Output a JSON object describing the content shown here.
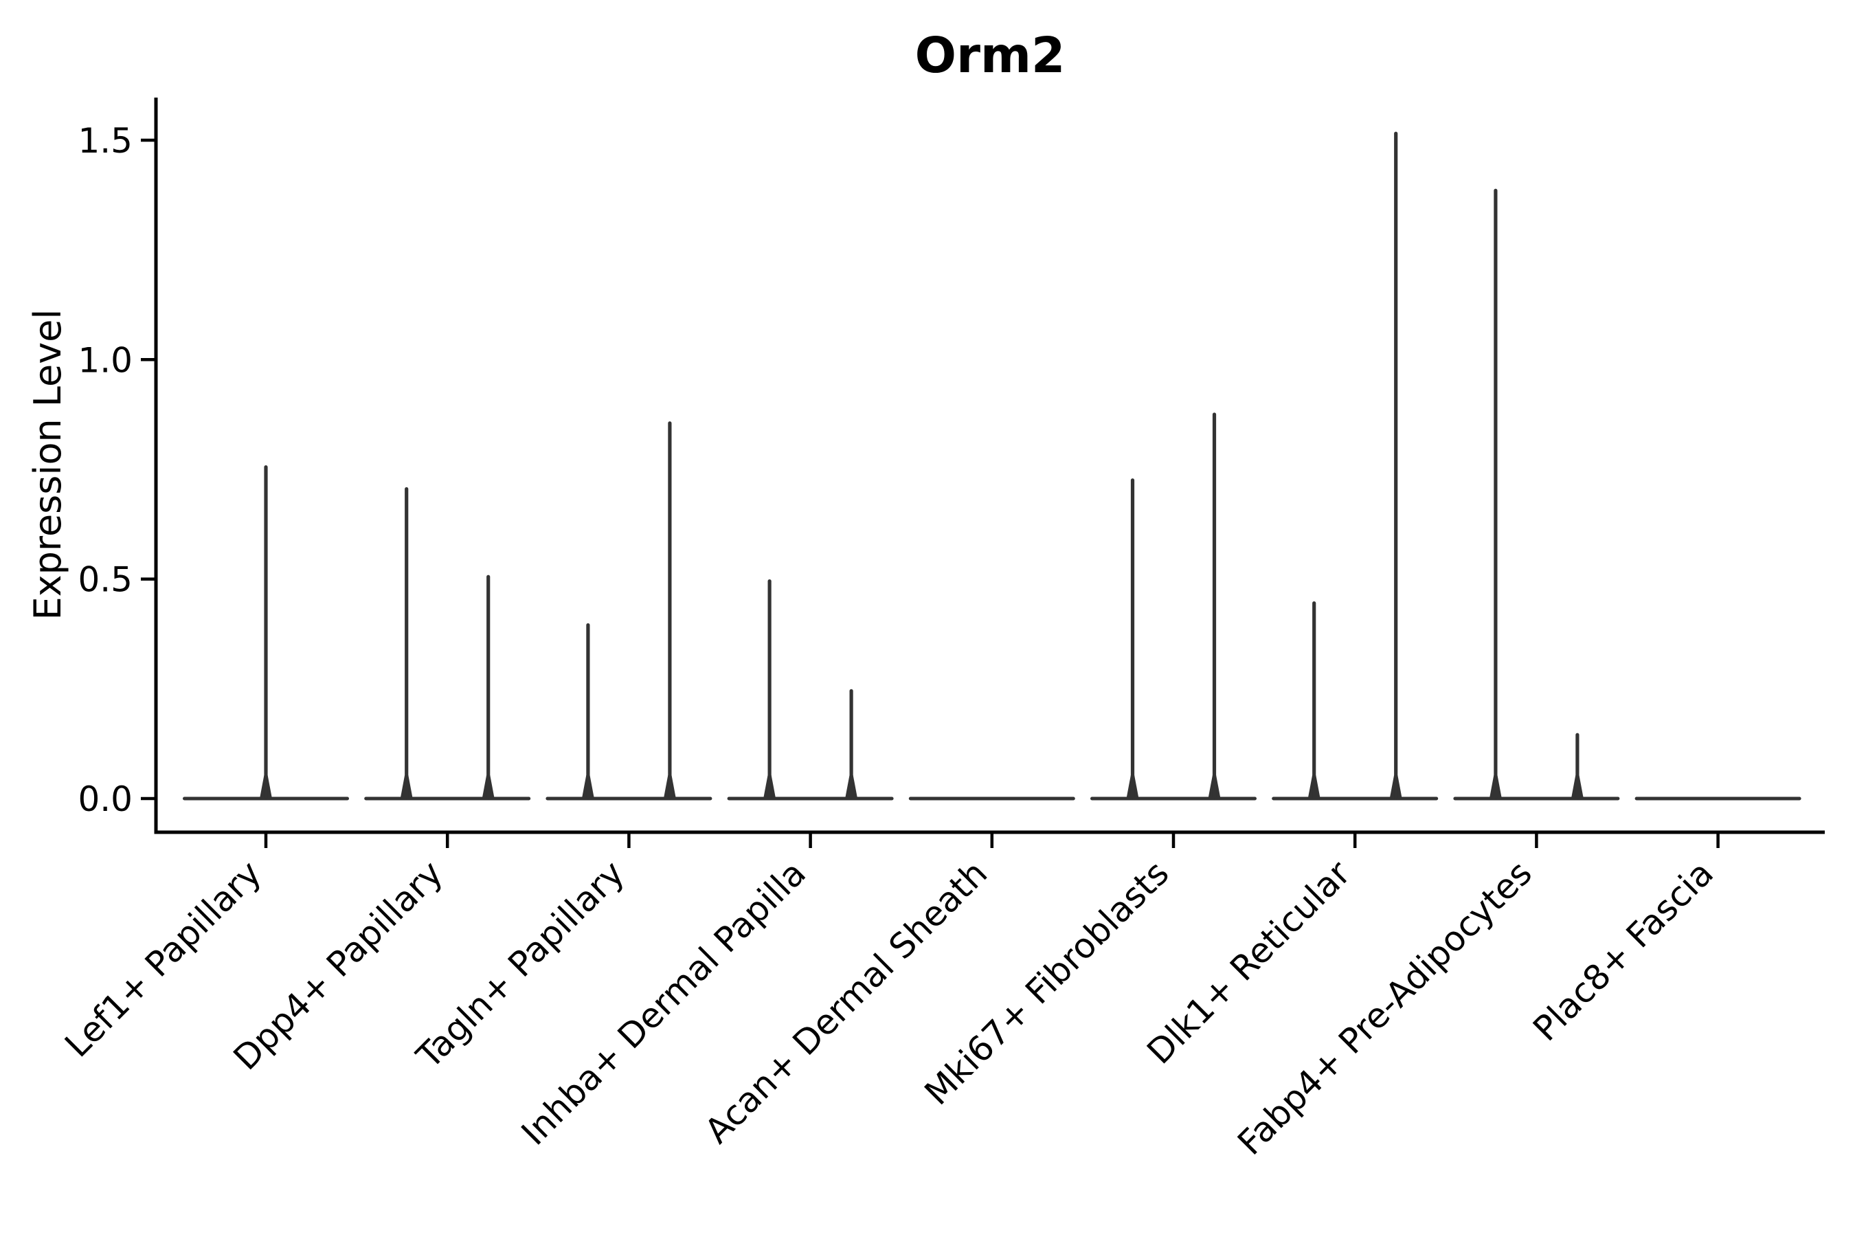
{
  "chart_data": {
    "type": "violin",
    "title": "Orm2",
    "ylabel": "Expression Level",
    "xlabel": "",
    "grid": false,
    "legend": "none",
    "background_color": "#ffffff",
    "axis_color": "#000000",
    "violin_color": "#333333",
    "ylim": [
      -0.08,
      1.6
    ],
    "ytick_values": [
      0.0,
      0.5,
      1.0,
      1.5
    ],
    "ytick_labels": [
      "0.0",
      "0.5",
      "1.0",
      "1.5"
    ],
    "baseline_value": 0,
    "categories": [
      {
        "label": "Lef1+ Papillary",
        "violins": [
          {
            "position": "center",
            "max": 0.76
          }
        ]
      },
      {
        "label": "Dpp4+ Papillary",
        "violins": [
          {
            "position": "left",
            "max": 0.71
          },
          {
            "position": "right",
            "max": 0.51
          }
        ]
      },
      {
        "label": "Tagln+ Papillary",
        "violins": [
          {
            "position": "left",
            "max": 0.4
          },
          {
            "position": "right",
            "max": 0.86
          }
        ]
      },
      {
        "label": "Inhba+ Dermal Papilla",
        "violins": [
          {
            "position": "left",
            "max": 0.5
          },
          {
            "position": "right",
            "max": 0.25
          }
        ]
      },
      {
        "label": "Acan+ Dermal Sheath",
        "violins": []
      },
      {
        "label": "Mki67+ Fibroblasts",
        "violins": [
          {
            "position": "left",
            "max": 0.73
          },
          {
            "position": "right",
            "max": 0.88
          }
        ]
      },
      {
        "label": "Dlk1+ Reticular",
        "violins": [
          {
            "position": "left",
            "max": 0.45
          },
          {
            "position": "right",
            "max": 1.52
          }
        ]
      },
      {
        "label": "Fabp4+ Pre-Adipocytes",
        "violins": [
          {
            "position": "left",
            "max": 1.39
          },
          {
            "position": "right",
            "max": 0.15
          }
        ]
      },
      {
        "label": "Plac8+ Fascia",
        "violins": []
      }
    ]
  }
}
